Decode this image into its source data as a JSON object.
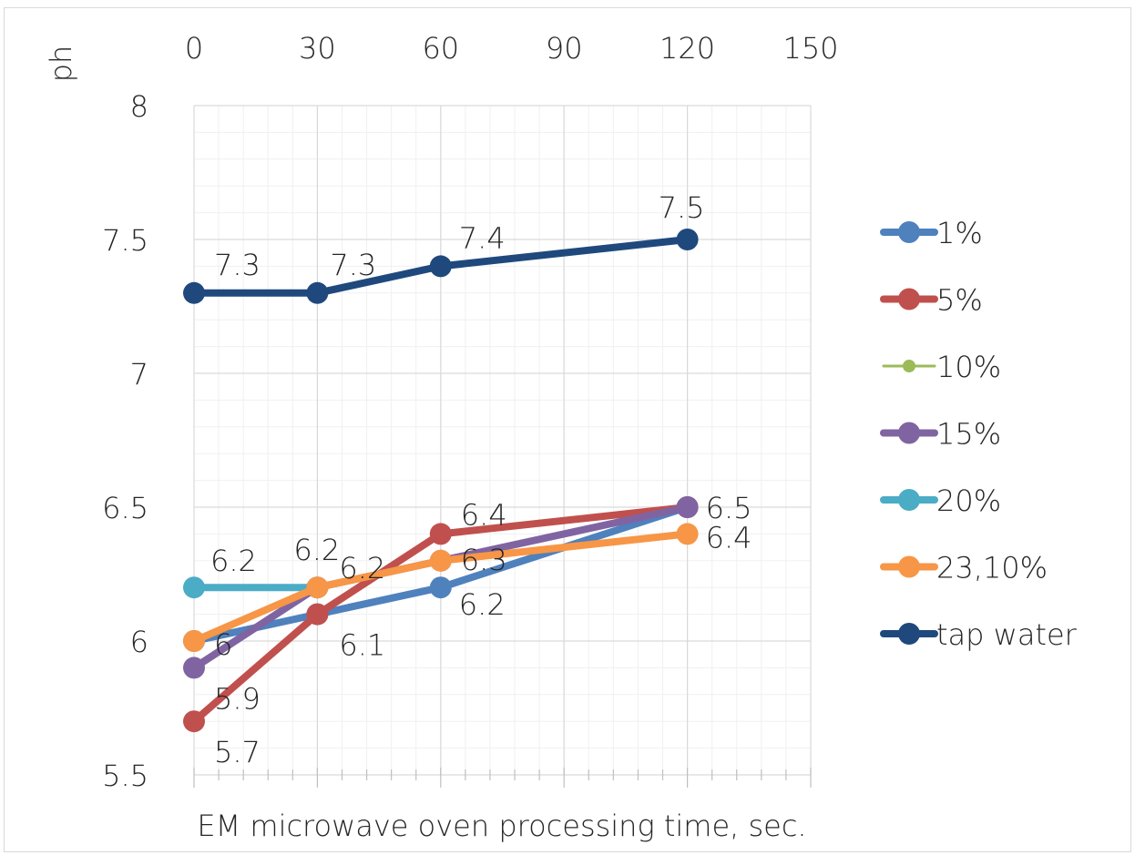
{
  "chart_data": {
    "type": "line",
    "title": "",
    "xlabel": "EM microwave oven processing time, sec.",
    "ylabel": "ph",
    "xlim": [
      0,
      150
    ],
    "ylim": [
      5.5,
      8
    ],
    "x_ticks": [
      0,
      30,
      60,
      90,
      120,
      150
    ],
    "x_tick_labels": [
      "0",
      "30",
      "60",
      "90",
      "120",
      "150"
    ],
    "y_ticks": [
      5.5,
      6,
      6.5,
      7,
      7.5,
      8
    ],
    "y_tick_labels": [
      "5.5",
      "6",
      "6.5",
      "7",
      "7.5",
      "8"
    ],
    "x_axis_position": "top",
    "grid": true,
    "legend_position": "right",
    "series": [
      {
        "name": "1%",
        "color": "#4f81bd",
        "x": [
          0,
          30,
          60,
          120
        ],
        "values": [
          6.0,
          6.1,
          6.2,
          6.5
        ],
        "labels": [
          "",
          "",
          "6.2",
          ""
        ]
      },
      {
        "name": "5%",
        "color": "#c0504d",
        "x": [
          0,
          30,
          60,
          120
        ],
        "values": [
          5.7,
          6.1,
          6.4,
          6.5
        ],
        "labels": [
          "5.7",
          "6.1",
          "6.4",
          ""
        ]
      },
      {
        "name": "10%",
        "color": "#9bbb59",
        "x": [],
        "values": [],
        "labels": []
      },
      {
        "name": "15%",
        "color": "#8064a2",
        "x": [
          0,
          30,
          60,
          120
        ],
        "values": [
          5.9,
          6.2,
          6.3,
          6.5
        ],
        "labels": [
          "5.9",
          "6.2",
          "6.3",
          "6.5"
        ]
      },
      {
        "name": "20%",
        "color": "#4bacc6",
        "x": [
          0,
          30
        ],
        "values": [
          6.2,
          6.2
        ],
        "labels": [
          "6.2",
          ""
        ]
      },
      {
        "name": "23,10%",
        "color": "#f79646",
        "x": [
          0,
          30,
          60,
          120
        ],
        "values": [
          6.0,
          6.2,
          6.3,
          6.4
        ],
        "labels": [
          "6",
          "6.2",
          "",
          "6.4"
        ]
      },
      {
        "name": "tap water",
        "color": "#1f497d",
        "x": [
          0,
          30,
          60,
          120
        ],
        "values": [
          7.3,
          7.3,
          7.4,
          7.5
        ],
        "labels": [
          "7.3",
          "7.3",
          "7.4",
          "7.5"
        ]
      }
    ]
  }
}
